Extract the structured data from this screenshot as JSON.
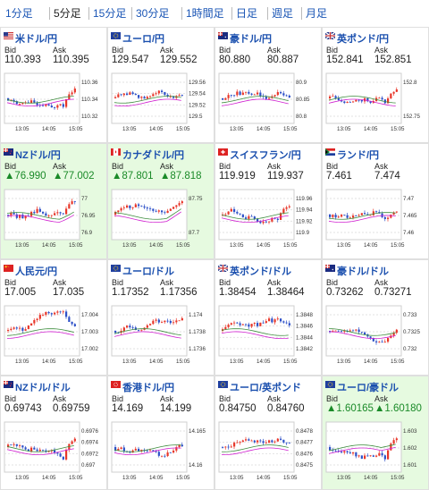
{
  "tabs": [
    "1分足",
    "5分足",
    "15分足",
    "30分足",
    "1時間足",
    "日足",
    "週足",
    "月足"
  ],
  "active_tab": 1,
  "labels": {
    "bid": "Bid",
    "ask": "Ask"
  },
  "colors": {
    "up": "#e8372a",
    "down": "#2d50c8",
    "ma_long": "#d020d0",
    "ma_short": "#3c8c3c",
    "link": "#1a4fae",
    "up_text": "#1a8a28",
    "up_bg": "#e6fae0"
  },
  "pairs": [
    {
      "name": "米ドル/円",
      "bid": "110.393",
      "ask": "110.395",
      "direction": "flat",
      "flag": "us",
      "ticks": [
        "110.36",
        "110.34",
        "110.32"
      ],
      "xlabels": [
        "13:05",
        "14:05",
        "15:05"
      ]
    },
    {
      "name": "ユーロ/円",
      "bid": "129.547",
      "ask": "129.552",
      "direction": "flat",
      "flag": "eu",
      "ticks": [
        "129.56",
        "129.54",
        "129.52",
        "129.5"
      ],
      "xlabels": [
        "13:05",
        "14:05",
        "15:05"
      ]
    },
    {
      "name": "豪ドル/円",
      "bid": "80.880",
      "ask": "80.887",
      "direction": "flat",
      "flag": "au",
      "ticks": [
        "80.9",
        "80.85",
        "80.8"
      ],
      "xlabels": [
        "13:05",
        "14:05",
        "15:05"
      ]
    },
    {
      "name": "英ポンド/円",
      "bid": "152.841",
      "ask": "152.851",
      "direction": "flat",
      "flag": "uk",
      "ticks": [
        "152.8",
        "152.75"
      ],
      "xlabels": [
        "13:05",
        "14:05",
        "15:05"
      ]
    },
    {
      "name": "NZドル/円",
      "bid": "▲76.990",
      "ask": "▲77.002",
      "direction": "up",
      "flag": "nz",
      "ticks": [
        "77",
        "76.95",
        "76.9"
      ],
      "xlabels": [
        "13:05",
        "14:05",
        "15:05"
      ]
    },
    {
      "name": "カナダドル/円",
      "bid": "▲87.801",
      "ask": "▲87.818",
      "direction": "up",
      "flag": "ca",
      "ticks": [
        "87.75",
        "87.7"
      ],
      "xlabels": [
        "13:05",
        "14:05",
        "15:05"
      ]
    },
    {
      "name": "スイスフラン/円",
      "bid": "119.919",
      "ask": "119.937",
      "direction": "flat",
      "flag": "ch",
      "ticks": [
        "119.96",
        "119.94",
        "119.92",
        "119.9"
      ],
      "xlabels": [
        "13:05",
        "14:05",
        "15:05"
      ]
    },
    {
      "name": "ランド/円",
      "bid": "7.461",
      "ask": "7.474",
      "direction": "flat",
      "flag": "za",
      "ticks": [
        "7.47",
        "7.465",
        "7.46"
      ],
      "xlabels": [
        "13:05",
        "14:05",
        "15:05"
      ]
    },
    {
      "name": "人民元/円",
      "bid": "17.005",
      "ask": "17.035",
      "direction": "flat",
      "flag": "cn",
      "ticks": [
        "17.004",
        "17.003",
        "17.002"
      ],
      "xlabels": [
        "13:05",
        "14:05",
        "15:05"
      ]
    },
    {
      "name": "ユーロ/ドル",
      "bid": "1.17352",
      "ask": "1.17356",
      "direction": "flat",
      "flag": "eu",
      "ticks": [
        "1.174",
        "1.1738",
        "1.1736"
      ],
      "xlabels": [
        "13:05",
        "14:05",
        "15:05"
      ]
    },
    {
      "name": "英ポンド/ドル",
      "bid": "1.38454",
      "ask": "1.38464",
      "direction": "flat",
      "flag": "uk",
      "ticks": [
        "1.3848",
        "1.3846",
        "1.3844",
        "1.3842"
      ],
      "xlabels": [
        "13:05",
        "14:05",
        "15:05"
      ]
    },
    {
      "name": "豪ドル/ドル",
      "bid": "0.73262",
      "ask": "0.73271",
      "direction": "flat",
      "flag": "au",
      "ticks": [
        "0.733",
        "0.7325",
        "0.732"
      ],
      "xlabels": [
        "13:05",
        "14:05",
        "15:05"
      ]
    },
    {
      "name": "NZドル/ドル",
      "bid": "0.69743",
      "ask": "0.69759",
      "direction": "flat",
      "flag": "nz",
      "ticks": [
        "0.6976",
        "0.6974",
        "0.6972",
        "0.697"
      ],
      "xlabels": [
        "13:05",
        "14:05",
        "15:05"
      ]
    },
    {
      "name": "香港ドル/円",
      "bid": "14.169",
      "ask": "14.199",
      "direction": "flat",
      "flag": "hk",
      "ticks": [
        "14.165",
        "14.16"
      ],
      "xlabels": [
        "13:05",
        "14:05",
        "15:05"
      ]
    },
    {
      "name": "ユーロ/英ポンド",
      "bid": "0.84750",
      "ask": "0.84760",
      "direction": "flat",
      "flag": "eu",
      "ticks": [
        "0.8478",
        "0.8477",
        "0.8476",
        "0.8475"
      ],
      "xlabels": [
        "13:05",
        "14:05",
        "15:05"
      ]
    },
    {
      "name": "ユーロ/豪ドル",
      "bid": "▲1.60165",
      "ask": "▲1.60180",
      "direction": "up",
      "flag": "eu",
      "ticks": [
        "1.603",
        "1.602",
        "1.601"
      ],
      "xlabels": [
        "13:05",
        "14:05",
        "15:05"
      ]
    }
  ]
}
